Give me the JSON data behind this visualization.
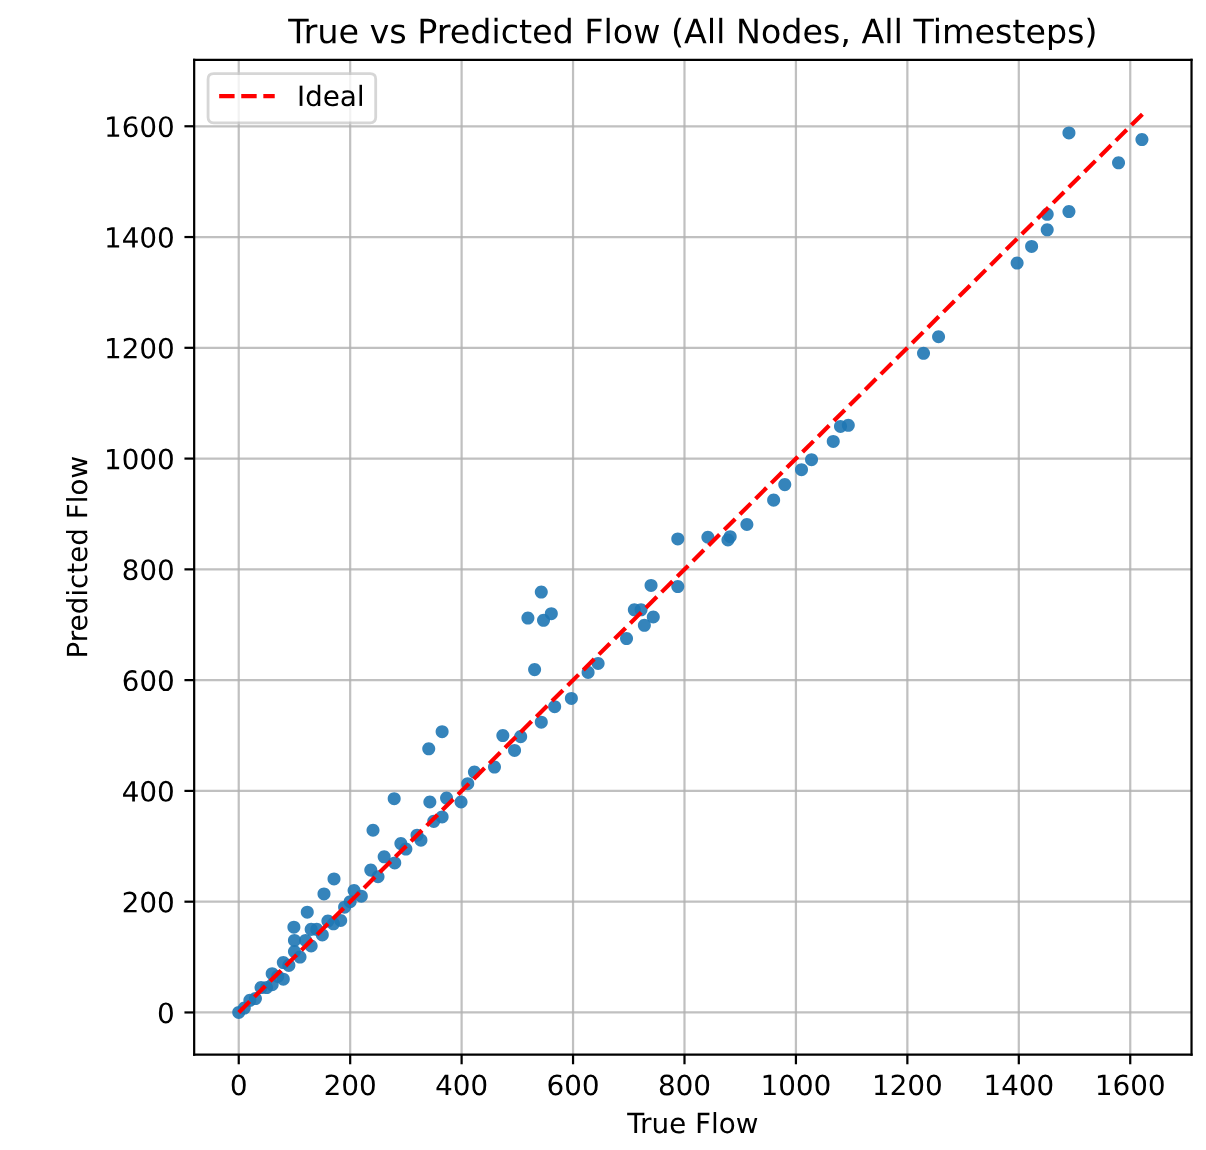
{
  "chart_data": {
    "type": "scatter",
    "title": "True vs Predicted Flow (All Nodes, All Timesteps)",
    "xlabel": "True Flow",
    "ylabel": "Predicted Flow",
    "xlim": [
      -80,
      1710
    ],
    "ylim": [
      -76,
      1720
    ],
    "xticks": [
      0,
      200,
      400,
      600,
      800,
      1000,
      1200,
      1400,
      1600
    ],
    "yticks": [
      0,
      200,
      400,
      600,
      800,
      1000,
      1200,
      1400,
      1600
    ],
    "grid": true,
    "legend": "top left",
    "series": [
      {
        "color": "#1f77b4",
        "marker": "circle",
        "x": [
          1490,
          1621,
          1579,
          1490,
          1451,
          1451,
          1423,
          1397,
          1256,
          1229,
          1094,
          1080,
          1067,
          1028,
          1010,
          980,
          960,
          912,
          882,
          878,
          842,
          788,
          788,
          740,
          722,
          710,
          744,
          728,
          696,
          543,
          561,
          519,
          547,
          531,
          645,
          627,
          597,
          567,
          543,
          506,
          474,
          495,
          365,
          341,
          459,
          423,
          411,
          399,
          373,
          343,
          365,
          279,
          241,
          327,
          291,
          261,
          237,
          207,
          171,
          153,
          123,
          183,
          99,
          0,
          10,
          20,
          30,
          40,
          50,
          60,
          70,
          80,
          90,
          100,
          110,
          120,
          130,
          140,
          150,
          160,
          170,
          100,
          130,
          80,
          60,
          190,
          200,
          220,
          250,
          280,
          300,
          320,
          350
        ],
        "values": [
          1588,
          1576,
          1534,
          1446,
          1441,
          1413,
          1383,
          1353,
          1220,
          1190,
          1060,
          1058,
          1031,
          998,
          980,
          953,
          925,
          881,
          859,
          853,
          858,
          855,
          769,
          771,
          727,
          727,
          714,
          699,
          675,
          759,
          720,
          712,
          708,
          619,
          630,
          614,
          567,
          552,
          524,
          498,
          500,
          473,
          507,
          476,
          443,
          434,
          413,
          380,
          387,
          380,
          353,
          386,
          329,
          311,
          305,
          281,
          257,
          220,
          241,
          214,
          181,
          166,
          154,
          0,
          8,
          22,
          25,
          45,
          45,
          70,
          65,
          90,
          85,
          110,
          100,
          130,
          120,
          150,
          140,
          165,
          160,
          130,
          150,
          60,
          50,
          190,
          200,
          210,
          245,
          270,
          295,
          320,
          345
        ]
      },
      {
        "type": "line",
        "name": "Ideal",
        "color": "#ff0000",
        "line_style": "dashed",
        "marker": "none",
        "x": [
          0,
          1625
        ],
        "values": [
          0,
          1625
        ]
      }
    ]
  }
}
